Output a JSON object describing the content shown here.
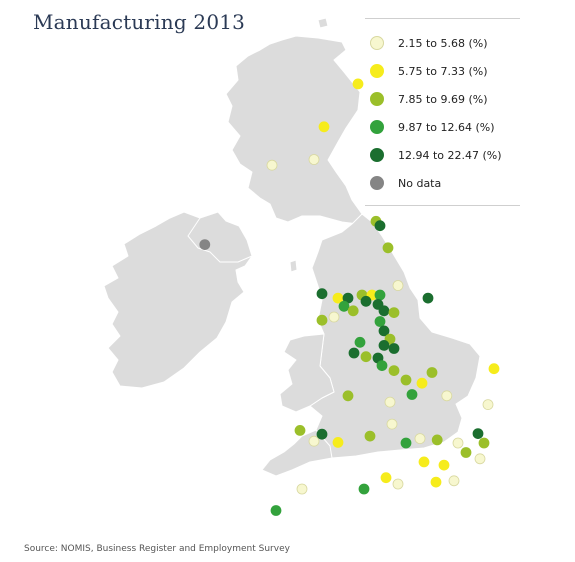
{
  "title": "Manufacturing 2013",
  "source": "Source: NOMIS, Business Register and Employment Survey",
  "legend": [
    {
      "label": "2.15 to 5.68 (%)",
      "color": "#f7f7cf",
      "stroke": "#d8d8a0"
    },
    {
      "label": "5.75 to 7.33 (%)",
      "color": "#f6ec1c",
      "stroke": "#f6ec1c"
    },
    {
      "label": "7.85 to 9.69 (%)",
      "color": "#9bbf2a",
      "stroke": "#9bbf2a"
    },
    {
      "label": "9.87 to 12.64 (%)",
      "color": "#33a23c",
      "stroke": "#33a23c"
    },
    {
      "label": "12.94 to 22.47 (%)",
      "color": "#1b6e2f",
      "stroke": "#1b6e2f"
    },
    {
      "label": "No data",
      "color": "#858585",
      "stroke": "#858585"
    }
  ],
  "map_data": {
    "land_color": "#dcdcdc",
    "border_color": "#ffffff",
    "points": [
      {
        "lon": -2.1,
        "lat": 57.15,
        "band": 1
      },
      {
        "lon": -2.95,
        "lat": 56.47,
        "band": 1
      },
      {
        "lon": -4.25,
        "lat": 55.86,
        "band": 0
      },
      {
        "lon": -3.2,
        "lat": 55.95,
        "band": 0
      },
      {
        "lon": -5.93,
        "lat": 54.6,
        "band": 5
      },
      {
        "lon": -1.65,
        "lat": 54.97,
        "band": 2
      },
      {
        "lon": -1.55,
        "lat": 54.9,
        "band": 4
      },
      {
        "lon": -1.35,
        "lat": 54.55,
        "band": 2
      },
      {
        "lon": -3.0,
        "lat": 53.82,
        "band": 4
      },
      {
        "lon": -2.6,
        "lat": 53.75,
        "band": 1
      },
      {
        "lon": -2.35,
        "lat": 53.75,
        "band": 4
      },
      {
        "lon": -2.0,
        "lat": 53.8,
        "band": 2
      },
      {
        "lon": -1.75,
        "lat": 53.8,
        "band": 1
      },
      {
        "lon": -1.55,
        "lat": 53.8,
        "band": 3
      },
      {
        "lon": -1.1,
        "lat": 53.95,
        "band": 0
      },
      {
        "lon": -0.35,
        "lat": 53.75,
        "band": 4
      },
      {
        "lon": -2.45,
        "lat": 53.62,
        "band": 3
      },
      {
        "lon": -2.22,
        "lat": 53.55,
        "band": 2
      },
      {
        "lon": -1.9,
        "lat": 53.7,
        "band": 4
      },
      {
        "lon": -1.6,
        "lat": 53.65,
        "band": 4
      },
      {
        "lon": -1.45,
        "lat": 53.55,
        "band": 4
      },
      {
        "lon": -1.2,
        "lat": 53.52,
        "band": 2
      },
      {
        "lon": -3.0,
        "lat": 53.4,
        "band": 2
      },
      {
        "lon": -2.7,
        "lat": 53.45,
        "band": 0
      },
      {
        "lon": -1.55,
        "lat": 53.38,
        "band": 3
      },
      {
        "lon": -1.45,
        "lat": 53.23,
        "band": 4
      },
      {
        "lon": -1.3,
        "lat": 53.1,
        "band": 2
      },
      {
        "lon": -1.45,
        "lat": 53.0,
        "band": 4
      },
      {
        "lon": -1.2,
        "lat": 52.95,
        "band": 4
      },
      {
        "lon": -2.05,
        "lat": 53.05,
        "band": 3
      },
      {
        "lon": -2.2,
        "lat": 52.88,
        "band": 4
      },
      {
        "lon": -1.9,
        "lat": 52.82,
        "band": 2
      },
      {
        "lon": -1.6,
        "lat": 52.8,
        "band": 4
      },
      {
        "lon": -1.5,
        "lat": 52.68,
        "band": 3
      },
      {
        "lon": -1.2,
        "lat": 52.6,
        "band": 2
      },
      {
        "lon": -0.25,
        "lat": 52.57,
        "band": 2
      },
      {
        "lon": 1.3,
        "lat": 52.63,
        "band": 1
      },
      {
        "lon": -0.9,
        "lat": 52.45,
        "band": 2
      },
      {
        "lon": -0.5,
        "lat": 52.4,
        "band": 1
      },
      {
        "lon": 0.12,
        "lat": 52.2,
        "band": 0
      },
      {
        "lon": 1.15,
        "lat": 52.06,
        "band": 0
      },
      {
        "lon": -0.75,
        "lat": 52.22,
        "band": 3
      },
      {
        "lon": -2.35,
        "lat": 52.2,
        "band": 2
      },
      {
        "lon": -1.3,
        "lat": 52.1,
        "band": 0
      },
      {
        "lon": -3.55,
        "lat": 51.65,
        "band": 2
      },
      {
        "lon": -3.2,
        "lat": 51.48,
        "band": 0
      },
      {
        "lon": -3.0,
        "lat": 51.59,
        "band": 4
      },
      {
        "lon": -2.6,
        "lat": 51.46,
        "band": 1
      },
      {
        "lon": -1.8,
        "lat": 51.56,
        "band": 2
      },
      {
        "lon": -1.25,
        "lat": 51.75,
        "band": 0
      },
      {
        "lon": -0.9,
        "lat": 51.45,
        "band": 3
      },
      {
        "lon": -0.55,
        "lat": 51.52,
        "band": 0
      },
      {
        "lon": -0.12,
        "lat": 51.5,
        "band": 2
      },
      {
        "lon": 0.4,
        "lat": 51.45,
        "band": 0
      },
      {
        "lon": 0.6,
        "lat": 51.3,
        "band": 2
      },
      {
        "lon": 0.9,
        "lat": 51.6,
        "band": 4
      },
      {
        "lon": 1.05,
        "lat": 51.45,
        "band": 2
      },
      {
        "lon": -0.45,
        "lat": 51.15,
        "band": 1
      },
      {
        "lon": 0.05,
        "lat": 51.1,
        "band": 1
      },
      {
        "lon": 0.95,
        "lat": 51.2,
        "band": 0
      },
      {
        "lon": -3.5,
        "lat": 50.72,
        "band": 0
      },
      {
        "lon": -4.15,
        "lat": 50.38,
        "band": 3
      },
      {
        "lon": -1.95,
        "lat": 50.72,
        "band": 3
      },
      {
        "lon": -1.4,
        "lat": 50.9,
        "band": 1
      },
      {
        "lon": -1.1,
        "lat": 50.8,
        "band": 0
      },
      {
        "lon": -0.15,
        "lat": 50.83,
        "band": 1
      },
      {
        "lon": 0.3,
        "lat": 50.85,
        "band": 0
      }
    ]
  }
}
